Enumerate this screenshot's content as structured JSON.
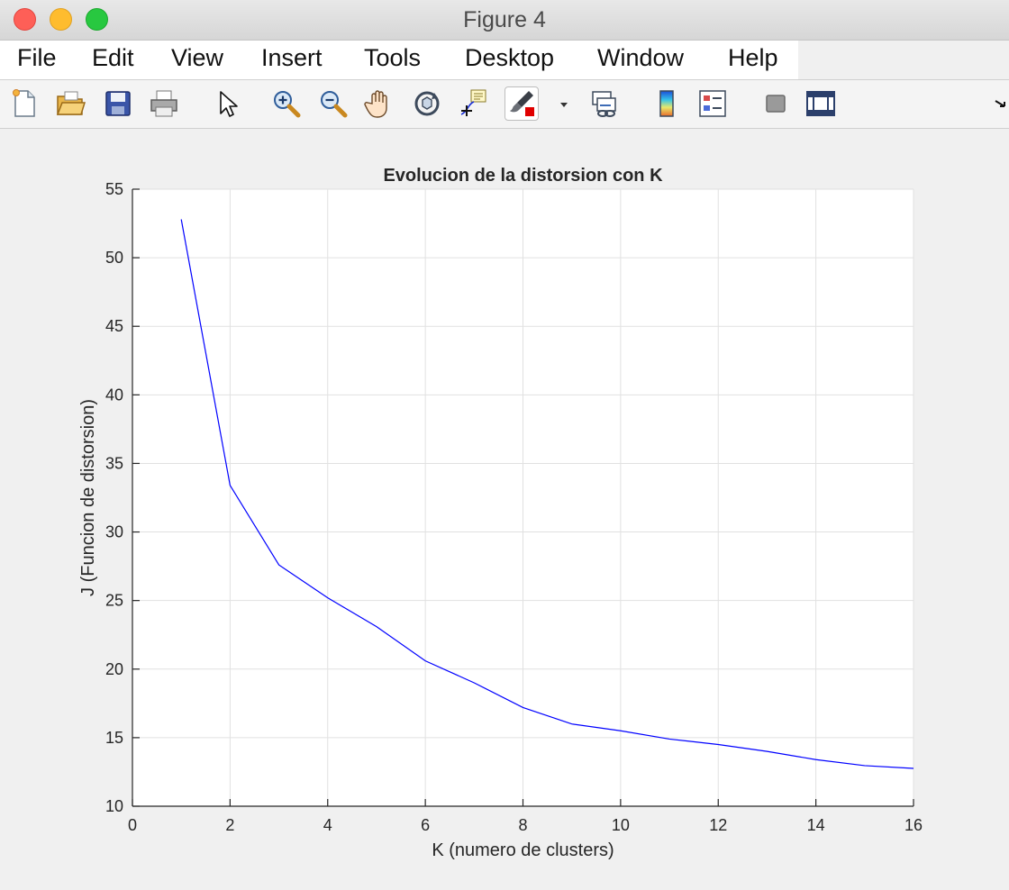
{
  "window": {
    "title": "Figure 4"
  },
  "menu": [
    "File",
    "Edit",
    "View",
    "Insert",
    "Tools",
    "Desktop",
    "Window",
    "Help"
  ],
  "toolbar": {
    "icons": [
      "new-figure-icon",
      "open-file-icon",
      "save-icon",
      "print-icon",
      "edit-plot-cursor-icon",
      "zoom-in-icon",
      "zoom-out-icon",
      "pan-hand-icon",
      "rotate-3d-icon",
      "data-cursor-icon",
      "brush-icon",
      "brush-dropdown-icon",
      "link-plot-icon",
      "colorbar-icon",
      "legend-icon",
      "hide-plot-tools-icon",
      "show-plot-tools-icon",
      "dock-arrow-icon"
    ]
  },
  "colors": {
    "line": "#0000ff",
    "grid": "#e1e1e1",
    "axes": "#262626"
  },
  "chart_data": {
    "type": "line",
    "title": "Evolucion de la distorsion con K",
    "xlabel": "K (numero de clusters)",
    "ylabel": "J (Funcion de distorsion)",
    "xlim": [
      0,
      16
    ],
    "ylim": [
      10,
      55
    ],
    "xticks": [
      0,
      2,
      4,
      6,
      8,
      10,
      12,
      14,
      16
    ],
    "yticks": [
      10,
      15,
      20,
      25,
      30,
      35,
      40,
      45,
      50,
      55
    ],
    "grid": true,
    "series": [
      {
        "x": [
          1,
          2,
          3,
          4,
          5,
          6,
          7,
          8,
          9,
          10,
          11,
          12,
          13,
          14,
          15,
          16
        ],
        "y": [
          52.8,
          33.4,
          27.6,
          25.2,
          23.1,
          20.6,
          19.0,
          17.2,
          16.0,
          15.5,
          14.9,
          14.5,
          14.0,
          13.4,
          12.96,
          12.76
        ]
      }
    ]
  }
}
